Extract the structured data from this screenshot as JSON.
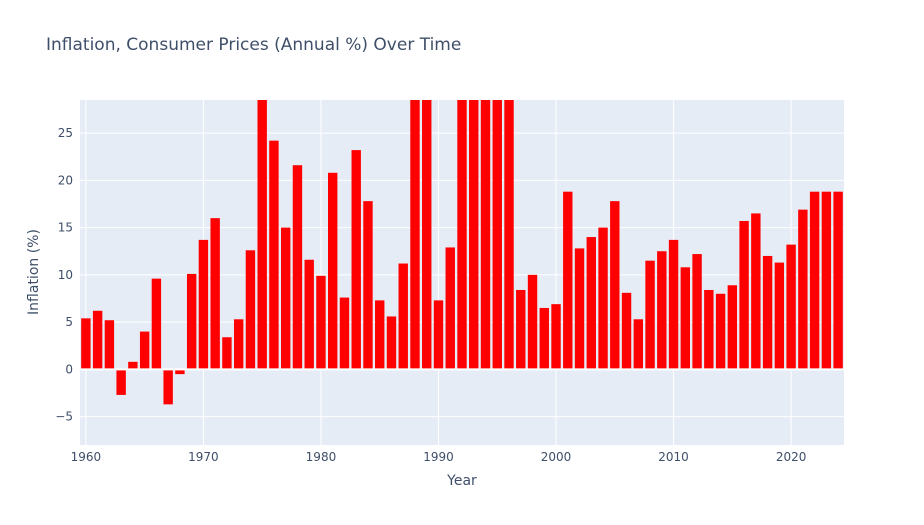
{
  "chart_data": {
    "type": "bar",
    "title": "Inflation, Consumer Prices (Annual %) Over Time",
    "xlabel": "Year",
    "ylabel": "Inflation (%)",
    "ylim": [
      -8,
      28.5
    ],
    "xlim": [
      1959.5,
      2024.5
    ],
    "yticks": [
      -5,
      0,
      5,
      10,
      15,
      20,
      25
    ],
    "xticks": [
      1960,
      1970,
      1980,
      1990,
      2000,
      2010,
      2020
    ],
    "grid": true,
    "bar_color": "#ff0000",
    "plot_background": "#e5ecf6",
    "grid_color": "#ffffff",
    "text_color": "#3f4f6a",
    "x": [
      1960,
      1961,
      1962,
      1963,
      1964,
      1965,
      1966,
      1967,
      1968,
      1969,
      1970,
      1971,
      1972,
      1973,
      1974,
      1975,
      1976,
      1977,
      1978,
      1979,
      1980,
      1981,
      1982,
      1983,
      1984,
      1985,
      1986,
      1987,
      1988,
      1989,
      1990,
      1991,
      1992,
      1993,
      1994,
      1995,
      1996,
      1997,
      1998,
      1999,
      2000,
      2001,
      2002,
      2003,
      2004,
      2005,
      2006,
      2007,
      2008,
      2009,
      2010,
      2011,
      2012,
      2013,
      2014,
      2015,
      2016,
      2017,
      2018,
      2019,
      2020,
      2021,
      2022,
      2023,
      2024
    ],
    "values": [
      5.4,
      6.2,
      5.2,
      -2.7,
      0.8,
      4.0,
      9.6,
      -3.7,
      -0.5,
      10.1,
      13.7,
      16.0,
      3.4,
      5.3,
      12.6,
      30.0,
      24.2,
      15.0,
      21.6,
      11.6,
      9.9,
      20.8,
      7.6,
      23.2,
      17.8,
      7.3,
      5.6,
      11.2,
      30.0,
      30.0,
      7.3,
      12.9,
      30.0,
      30.0,
      30.0,
      30.0,
      30.0,
      8.4,
      10.0,
      6.5,
      6.9,
      18.8,
      12.8,
      14.0,
      15.0,
      17.8,
      8.1,
      5.3,
      11.5,
      12.5,
      13.7,
      10.8,
      12.2,
      8.4,
      8.0,
      8.9,
      15.7,
      16.5,
      12.0,
      11.3,
      13.2,
      16.9,
      18.8,
      18.8,
      18.8
    ]
  }
}
